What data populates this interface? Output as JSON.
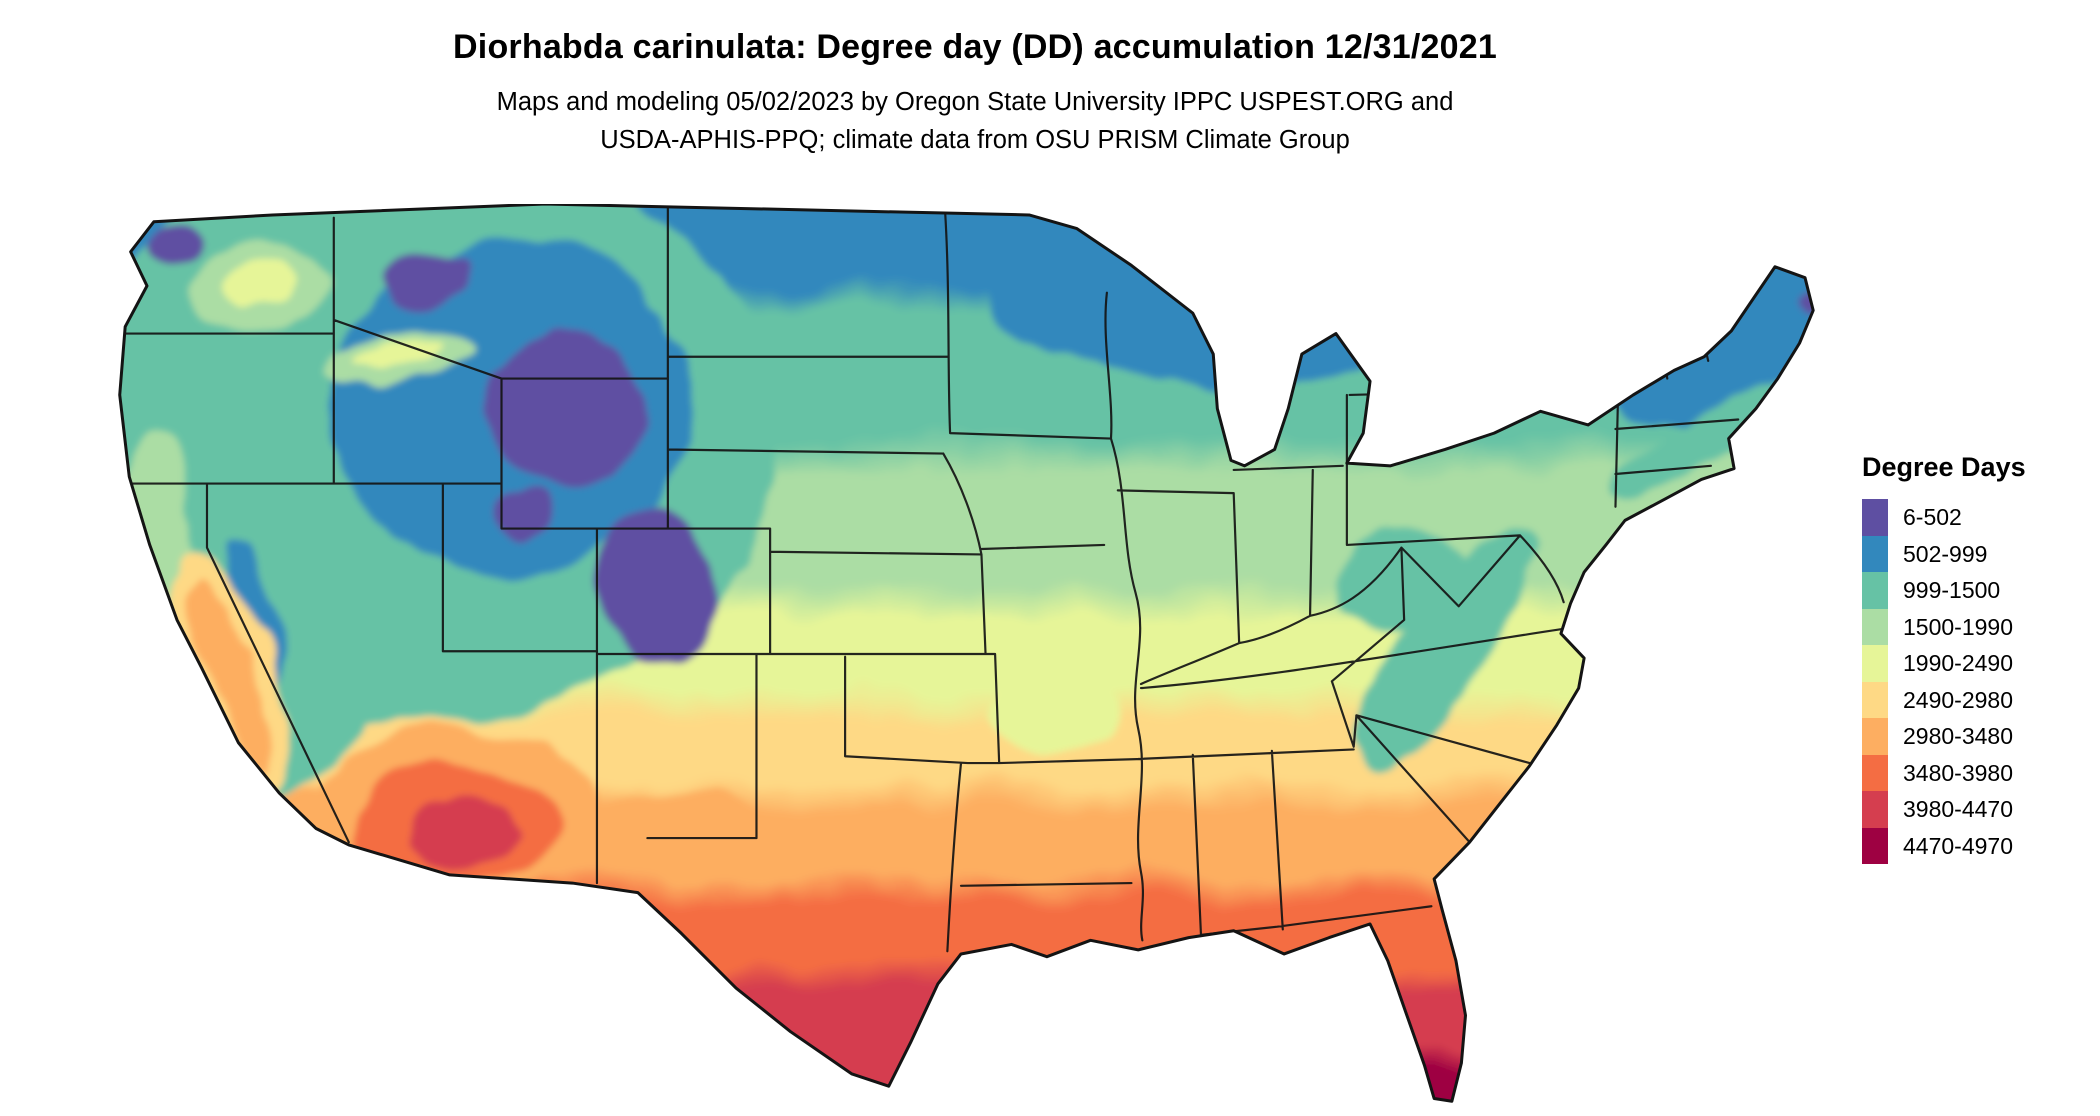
{
  "page": {
    "title": "Diorhabda carinulata: Degree day (DD) accumulation 12/31/2021",
    "subtitle_line1": "Maps and modeling 05/02/2023 by Oregon State University IPPC USPEST.ORG and",
    "subtitle_line2": "USDA-APHIS-PPQ; climate data from OSU PRISM Climate Group"
  },
  "legend": {
    "title": "Degree Days",
    "entries": [
      {
        "label": "6-502",
        "color": "#5e4fa2"
      },
      {
        "label": "502-999",
        "color": "#3288bd"
      },
      {
        "label": "999-1500",
        "color": "#66c2a5"
      },
      {
        "label": "1500-1990",
        "color": "#abdda4"
      },
      {
        "label": "1990-2490",
        "color": "#e6f598"
      },
      {
        "label": "2490-2980",
        "color": "#fed985"
      },
      {
        "label": "2980-3480",
        "color": "#fdae61"
      },
      {
        "label": "3480-3980",
        "color": "#f46d43"
      },
      {
        "label": "3980-4470",
        "color": "#d53e4f"
      },
      {
        "label": "4470-4970",
        "color": "#9e0142"
      }
    ]
  }
}
